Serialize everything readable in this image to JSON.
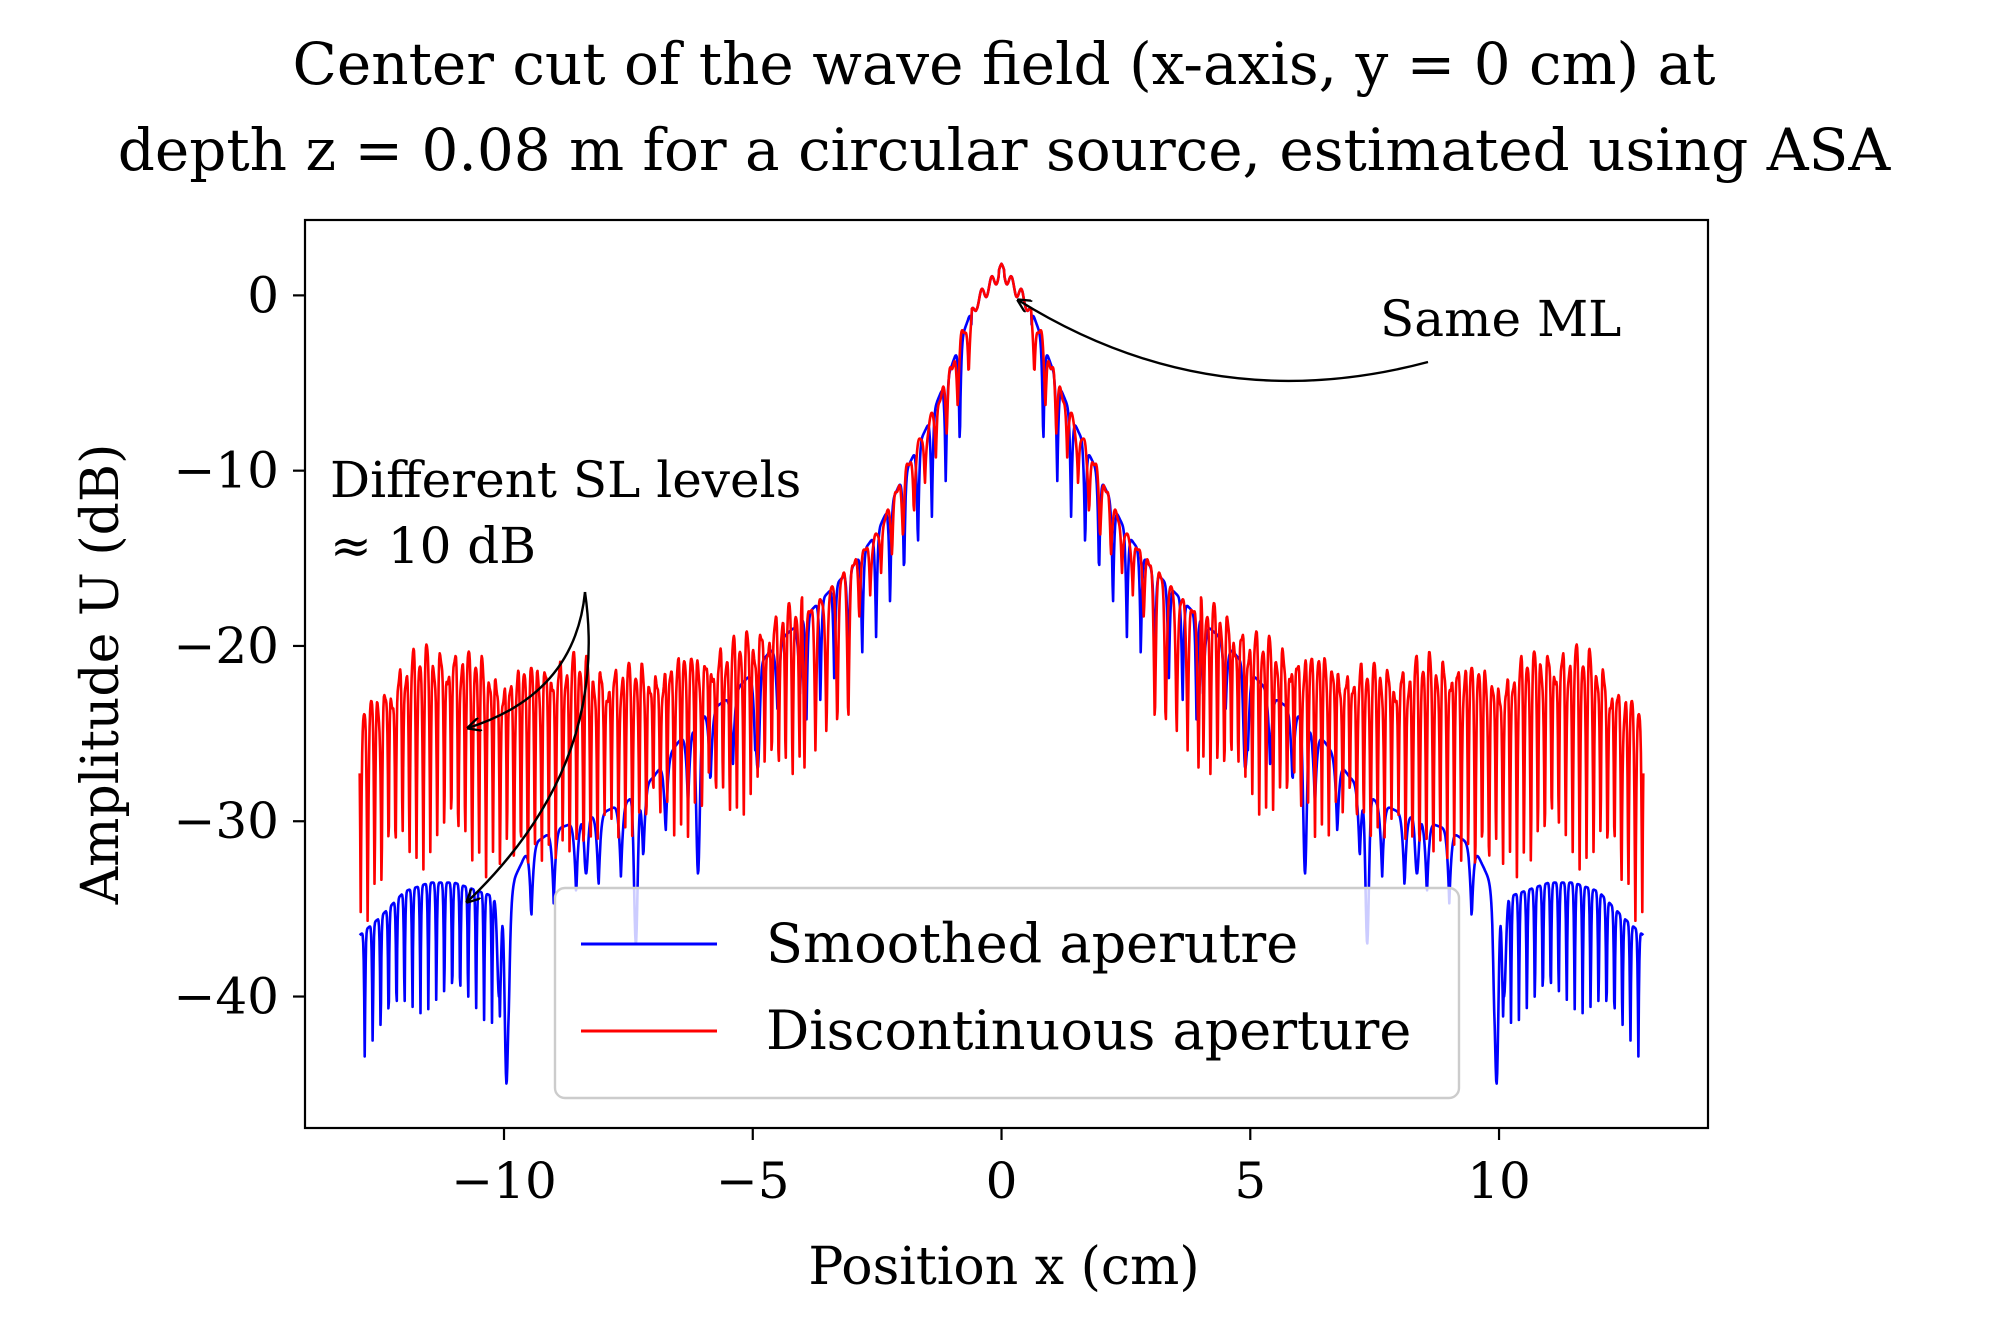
{
  "chart_data": {
    "type": "line",
    "title_lines": [
      "Center cut of the wave field (x-axis, y = 0 cm) at",
      "depth z = 0.08 m for a circular source, estimated using ASA"
    ],
    "xlabel": "Position x (cm)",
    "ylabel": "Amplitude U (dB)",
    "xlim": [
      -14.0,
      14.2
    ],
    "ylim": [
      -47.5,
      4.3
    ],
    "xticks": [
      -10,
      -5,
      0,
      5,
      10
    ],
    "xtick_labels": [
      "−10",
      "−5",
      "0",
      "5",
      "10"
    ],
    "yticks": [
      0,
      -10,
      -20,
      -30,
      -40
    ],
    "ytick_labels": [
      "0",
      "−10",
      "−20",
      "−30",
      "−40"
    ],
    "grid": false,
    "legend_placement": "lower-center",
    "colors": {
      "smoothed": "#0000ff",
      "discontinuous": "#ff0000"
    },
    "series": [
      {
        "name": "Smoothed aperutre",
        "color": "#0000ff",
        "envelope": [
          [
            0,
            1.8
          ],
          [
            0.5,
            0.0
          ],
          [
            1.0,
            -4.0
          ],
          [
            1.5,
            -7.5
          ],
          [
            2.0,
            -10.5
          ],
          [
            2.5,
            -13.5
          ],
          [
            3.0,
            -15.5
          ],
          [
            3.5,
            -17.0
          ],
          [
            4.0,
            -18.5
          ],
          [
            4.5,
            -19.8
          ],
          [
            5.0,
            -21.5
          ],
          [
            5.5,
            -23.0
          ],
          [
            6.0,
            -24.0
          ],
          [
            6.5,
            -25.5
          ],
          [
            7.0,
            -27.5
          ],
          [
            7.5,
            -28.8
          ],
          [
            8.0,
            -29.5
          ],
          [
            8.5,
            -30.0
          ],
          [
            9.0,
            -30.5
          ],
          [
            9.5,
            -31.5
          ],
          [
            10.0,
            -34.5
          ],
          [
            10.5,
            -34.0
          ],
          [
            11.0,
            -33.5
          ],
          [
            11.5,
            -33.5
          ],
          [
            12.0,
            -34.0
          ],
          [
            12.5,
            -35.5
          ],
          [
            12.9,
            -36.5
          ]
        ],
        "notches": [
          [
            4.9,
            -27.0
          ],
          [
            6.1,
            -33.0
          ],
          [
            7.35,
            -37.0
          ],
          [
            8.35,
            -33.0
          ],
          [
            9.95,
            -45.0
          ],
          [
            10.1,
            -40.0
          ]
        ]
      },
      {
        "name": "Discontinuous aperture",
        "color": "#ff0000",
        "envelope": [
          [
            0,
            1.8
          ],
          [
            0.5,
            0.0
          ],
          [
            1.0,
            -4.0
          ],
          [
            1.5,
            -7.5
          ],
          [
            2.0,
            -10.5
          ],
          [
            2.5,
            -13.5
          ],
          [
            3.0,
            -15.5
          ],
          [
            3.5,
            -17.0
          ],
          [
            4.0,
            -18.2
          ],
          [
            4.5,
            -19.0
          ],
          [
            5.0,
            -20.0
          ],
          [
            5.5,
            -20.8
          ],
          [
            6.0,
            -21.2
          ],
          [
            6.5,
            -21.5
          ],
          [
            7.0,
            -22.0
          ],
          [
            7.5,
            -22.0
          ],
          [
            8.0,
            -22.0
          ],
          [
            8.5,
            -21.5
          ],
          [
            9.0,
            -21.5
          ],
          [
            9.5,
            -22.0
          ],
          [
            10.0,
            -22.5
          ],
          [
            10.5,
            -21.5
          ],
          [
            11.0,
            -21.0
          ],
          [
            11.5,
            -21.0
          ],
          [
            12.0,
            -21.5
          ],
          [
            12.5,
            -23.5
          ],
          [
            12.9,
            -24.5
          ]
        ],
        "notches": []
      }
    ],
    "annotations": [
      {
        "text": "Same ML",
        "target": [
          0.1,
          -0.3
        ]
      },
      {
        "lines": [
          "Different SL levels",
          "≈ 10 dB"
        ],
        "targets": [
          [
            -10.9,
            -24.5
          ],
          [
            -10.9,
            -34.4
          ]
        ]
      }
    ]
  },
  "legend": {
    "smoothed_label": "Smoothed aperutre",
    "discontinuous_label": "Discontinuous aperture"
  }
}
